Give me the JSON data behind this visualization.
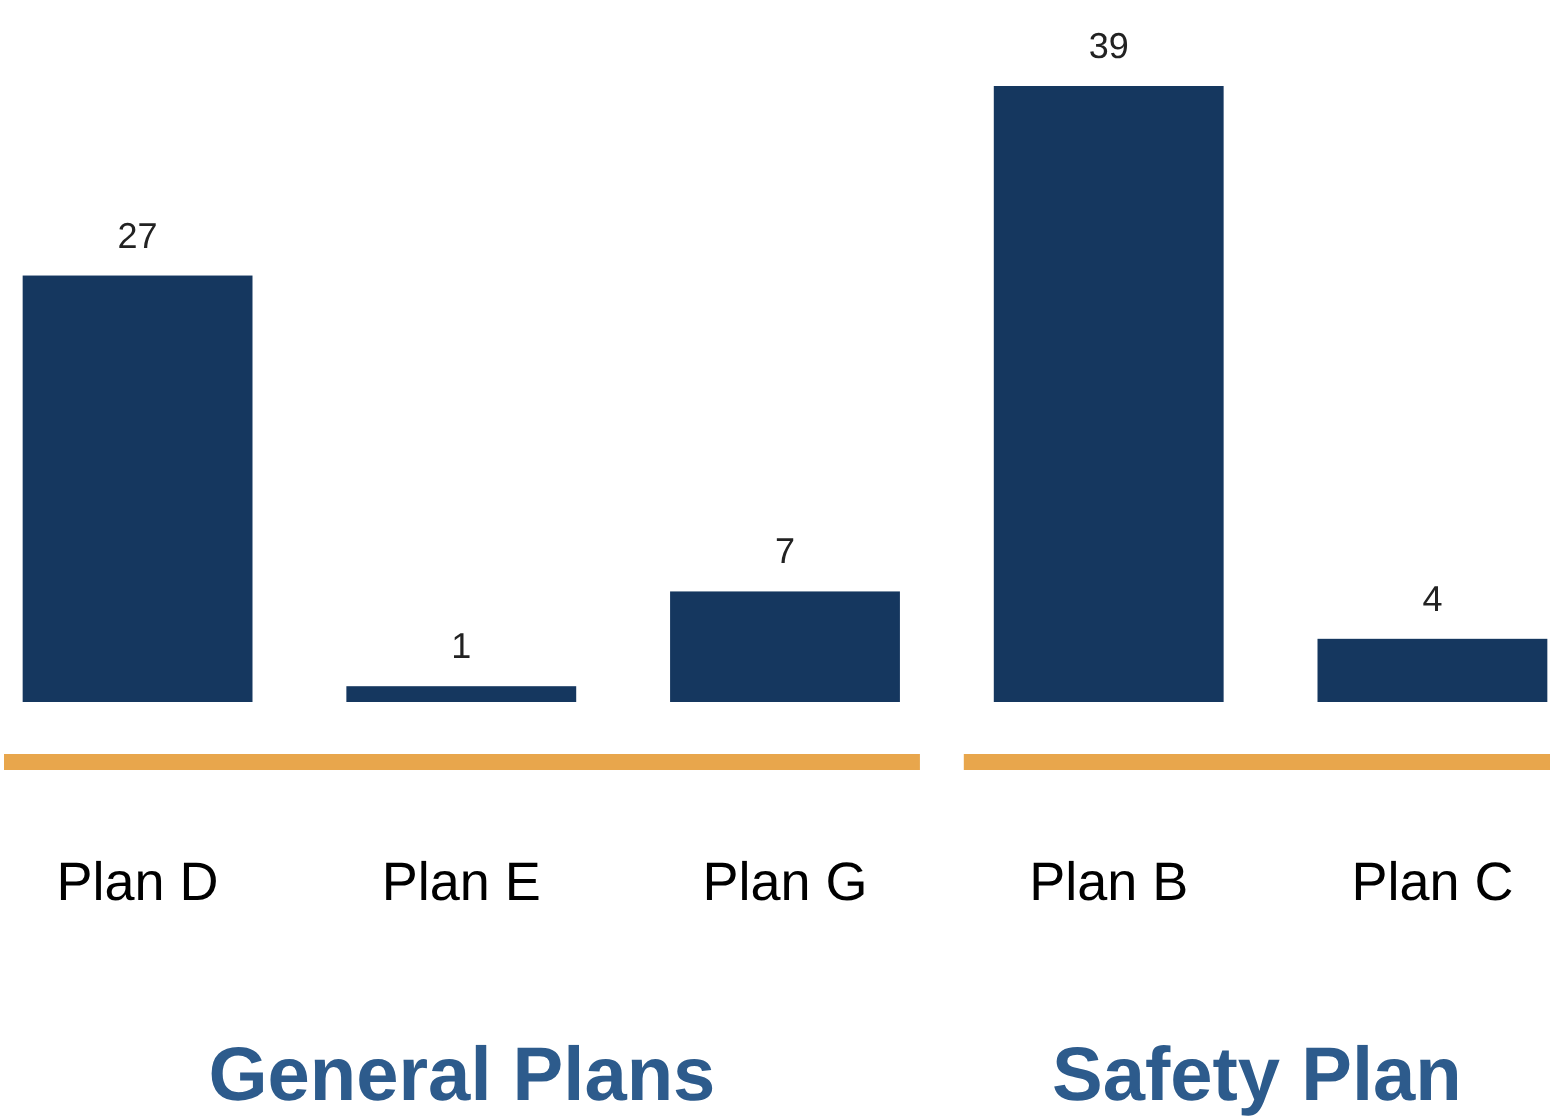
{
  "chart_data": {
    "type": "bar",
    "categories": [
      "Plan D",
      "Plan E",
      "Plan G",
      "Plan B",
      "Plan C"
    ],
    "values": [
      27,
      1,
      7,
      39,
      4
    ],
    "color": "#15375f",
    "data_labels": true,
    "annotations": [
      "General Plans",
      "Safety Plan"
    ]
  }
}
